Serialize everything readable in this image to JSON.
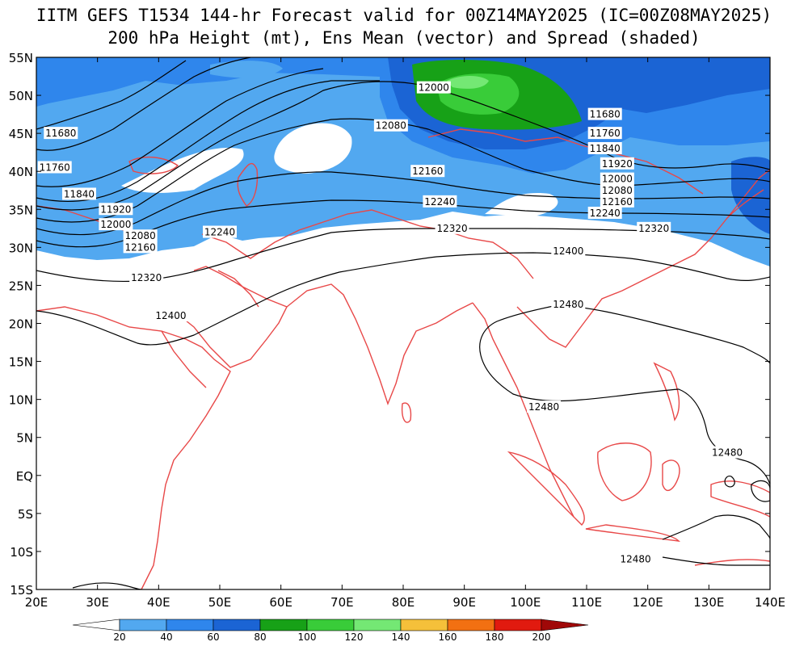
{
  "title": {
    "line1": "IITM GEFS T1534 144-hr Forecast valid for 00Z14MAY2025 (IC=00Z08MAY2025)",
    "line2": "200 hPa Height (mt), Ens Mean (vector) and Spread (shaded)"
  },
  "map": {
    "lon_range": [
      20,
      140
    ],
    "lat_range": [
      -15,
      55
    ],
    "lon_ticks": [
      "20E",
      "30E",
      "40E",
      "50E",
      "60E",
      "70E",
      "80E",
      "90E",
      "100E",
      "110E",
      "120E",
      "130E",
      "140E"
    ],
    "lat_ticks": [
      "55N",
      "50N",
      "45N",
      "40N",
      "35N",
      "30N",
      "25N",
      "20N",
      "15N",
      "10N",
      "5N",
      "EQ",
      "5S",
      "10S",
      "15S"
    ],
    "contour_labels": [
      {
        "text": "12000",
        "lon": 85,
        "lat": 51
      },
      {
        "text": "12080",
        "lon": 78,
        "lat": 46
      },
      {
        "text": "11680",
        "lon": 24,
        "lat": 45
      },
      {
        "text": "11760",
        "lon": 23,
        "lat": 40.5
      },
      {
        "text": "11840",
        "lon": 27,
        "lat": 37
      },
      {
        "text": "11920",
        "lon": 33,
        "lat": 35
      },
      {
        "text": "12000",
        "lon": 33,
        "lat": 33
      },
      {
        "text": "12080",
        "lon": 37,
        "lat": 31.5
      },
      {
        "text": "12160",
        "lon": 37,
        "lat": 30
      },
      {
        "text": "12240",
        "lon": 50,
        "lat": 32
      },
      {
        "text": "12160",
        "lon": 84,
        "lat": 40
      },
      {
        "text": "12240",
        "lon": 86,
        "lat": 36
      },
      {
        "text": "12320",
        "lon": 88,
        "lat": 32.5
      },
      {
        "text": "12320",
        "lon": 38,
        "lat": 26
      },
      {
        "text": "12400",
        "lon": 42,
        "lat": 21
      },
      {
        "text": "12400",
        "lon": 107,
        "lat": 29.5
      },
      {
        "text": "11680",
        "lon": 113,
        "lat": 47.5
      },
      {
        "text": "11760",
        "lon": 113,
        "lat": 45
      },
      {
        "text": "11840",
        "lon": 113,
        "lat": 43
      },
      {
        "text": "11920",
        "lon": 115,
        "lat": 41
      },
      {
        "text": "12000",
        "lon": 115,
        "lat": 39
      },
      {
        "text": "12080",
        "lon": 115,
        "lat": 37.5
      },
      {
        "text": "12160",
        "lon": 115,
        "lat": 36
      },
      {
        "text": "12240",
        "lon": 113,
        "lat": 34.5
      },
      {
        "text": "12320",
        "lon": 121,
        "lat": 32.5
      },
      {
        "text": "12480",
        "lon": 107,
        "lat": 22.5
      },
      {
        "text": "12480",
        "lon": 103,
        "lat": 9
      },
      {
        "text": "12480",
        "lon": 133,
        "lat": 3
      },
      {
        "text": "12480",
        "lon": 118,
        "lat": -11
      }
    ]
  },
  "colorbar": {
    "labels": [
      "20",
      "40",
      "60",
      "80",
      "100",
      "120",
      "140",
      "160",
      "180",
      "200"
    ],
    "colors": [
      "#ffffff",
      "#52a8f0",
      "#2f86ec",
      "#1b64d4",
      "#17a117",
      "#39cc39",
      "#74e874",
      "#f5c03a",
      "#f27012",
      "#e11a0f",
      "#a00808"
    ]
  },
  "colors": {
    "coast": "#e84848",
    "contour": "#000000"
  }
}
